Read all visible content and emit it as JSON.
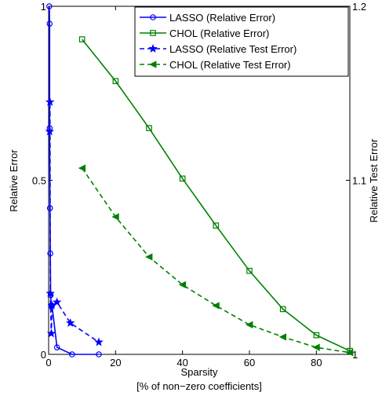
{
  "chart_data": {
    "type": "line",
    "xlabel": "Sparsity",
    "xlabel2": "[% of non−zero coefficients]",
    "ylabel_left": "Relative Error",
    "ylabel_right": "Relative Test Error",
    "xlim": [
      0,
      90
    ],
    "ylim_left": [
      0,
      1
    ],
    "ylim_right": [
      1,
      1.2
    ],
    "x_ticks": [
      0,
      20,
      40,
      60,
      80
    ],
    "x_tick_labels": [
      "0",
      "20",
      "40",
      "60",
      "80"
    ],
    "y_left_ticks": [
      0,
      0.5,
      1
    ],
    "y_left_tick_labels": [
      "0",
      "0.5",
      "1"
    ],
    "y_right_ticks": [
      1,
      1.1,
      1.2
    ],
    "y_right_tick_labels": [
      "1",
      "1.1",
      "1.2"
    ],
    "grid": false,
    "legend_position": "top-right",
    "series": [
      {
        "name": "LASSO (Relative Error)",
        "axis": "left",
        "color": "#0000ff",
        "line_style": "solid",
        "marker": "circle",
        "x": [
          0.2,
          0.3,
          0.3,
          0.4,
          0.5,
          0.6,
          0.8,
          1.0,
          2.5,
          7,
          15
        ],
        "y": [
          1.0,
          0.95,
          0.65,
          0.42,
          0.29,
          0.17,
          0.14,
          0.14,
          0.02,
          0.0,
          0.0
        ]
      },
      {
        "name": "CHOL (Relative Error)",
        "axis": "left",
        "color": "#008000",
        "line_style": "solid",
        "marker": "square",
        "x": [
          10,
          20,
          30,
          40,
          50,
          60,
          70,
          80,
          90
        ],
        "y": [
          0.905,
          0.785,
          0.65,
          0.505,
          0.37,
          0.24,
          0.13,
          0.055,
          0.01
        ]
      },
      {
        "name": "LASSO (Relative Test Error)",
        "axis": "right",
        "color": "#0000ff",
        "line_style": "dashed",
        "marker": "star",
        "x": [
          0.3,
          0.4,
          0.5,
          0.8,
          1.0,
          2.5,
          6.5,
          15
        ],
        "y": [
          1.128,
          1.145,
          1.035,
          1.012,
          1.028,
          1.03,
          1.018,
          1.007
        ]
      },
      {
        "name": "CHOL (Relative Test Error)",
        "axis": "right",
        "color": "#008000",
        "line_style": "dashed",
        "marker": "triangle-left",
        "x": [
          10,
          20,
          30,
          40,
          50,
          60,
          70,
          80,
          90
        ],
        "y": [
          1.107,
          1.079,
          1.056,
          1.04,
          1.028,
          1.017,
          1.01,
          1.004,
          1.001
        ]
      }
    ]
  }
}
